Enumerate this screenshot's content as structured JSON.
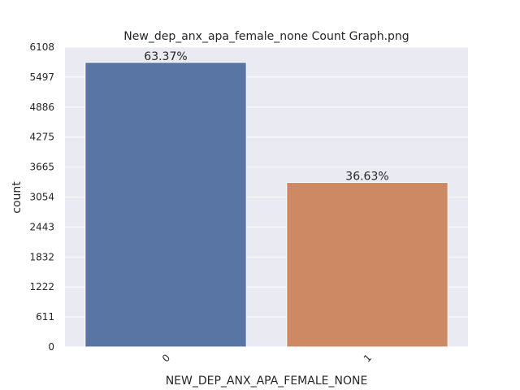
{
  "chart_data": {
    "type": "bar",
    "title": "New_dep_anx_apa_female_none Count Graph.png",
    "xlabel": "NEW_DEP_ANX_APA_FEMALE_NONE",
    "ylabel": "count",
    "categories": [
      "0",
      "1"
    ],
    "values": [
      5797,
      3351
    ],
    "bar_labels": [
      "63.37%",
      "36.63%"
    ],
    "colors": [
      "#5875a4",
      "#cc8963"
    ],
    "yticks": [
      "0",
      "611",
      "1222",
      "1832",
      "2443",
      "3054",
      "3665",
      "4275",
      "4886",
      "5497",
      "6108"
    ],
    "ylim": [
      0,
      6108
    ],
    "grid": true,
    "background": "#eaeaf2"
  }
}
